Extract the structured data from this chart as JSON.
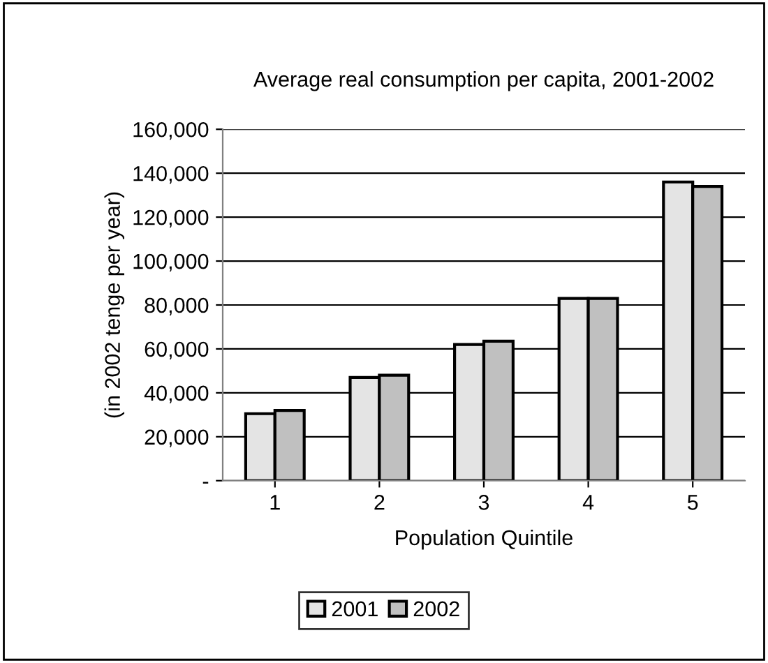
{
  "chart_data": {
    "type": "bar",
    "title": "Average real consumption per capita, 2001-2002",
    "xlabel": "Population Quintile",
    "ylabel": "(in 2002 tenge per year)",
    "categories": [
      "1",
      "2",
      "3",
      "4",
      "5"
    ],
    "series": [
      {
        "name": "2001",
        "color": "#e4e4e4",
        "values": [
          30500,
          47000,
          62000,
          83000,
          136000
        ]
      },
      {
        "name": "2002",
        "color": "#c0c0c0",
        "values": [
          32000,
          48000,
          63500,
          83000,
          134000
        ]
      }
    ],
    "ylim": [
      0,
      160000
    ],
    "yticks": [
      {
        "value": 0,
        "label": "-"
      },
      {
        "value": 20000,
        "label": "20,000"
      },
      {
        "value": 40000,
        "label": "40,000"
      },
      {
        "value": 60000,
        "label": "60,000"
      },
      {
        "value": 80000,
        "label": "80,000"
      },
      {
        "value": 100000,
        "label": "100,000"
      },
      {
        "value": 120000,
        "label": "120,000"
      },
      {
        "value": 140000,
        "label": "140,000"
      },
      {
        "value": 160000,
        "label": "160,000"
      }
    ],
    "grid": "y",
    "legend": "bottom"
  }
}
